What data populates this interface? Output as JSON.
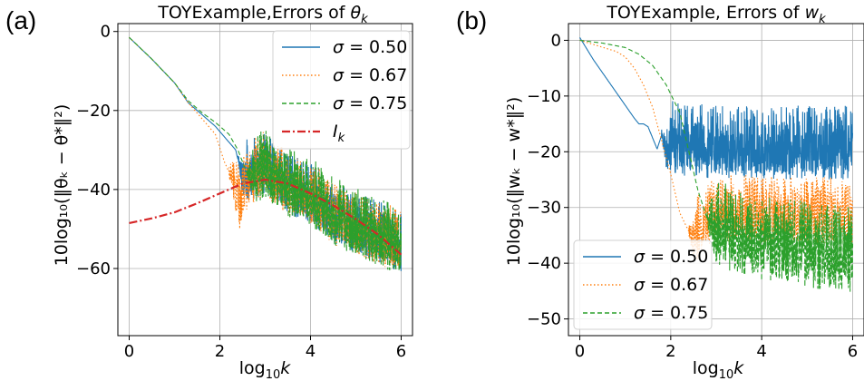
{
  "chart_data": [
    {
      "type": "line",
      "panel_label": "(a)",
      "title": "TOYExample,Errors of θ_k",
      "title_text": "TOYExample,Errors of ",
      "title_math": "θ",
      "title_sub": "k",
      "xlabel_text": "log",
      "xlabel_sub": "10",
      "xlabel_var": "k",
      "ylabel": "10log₁₀(‖θₖ − θ*‖²)",
      "xlim": [
        -0.25,
        6.25
      ],
      "ylim": [
        -77,
        2
      ],
      "xticks": [
        0,
        2,
        4,
        6
      ],
      "yticks": [
        0,
        -20,
        -40,
        -60
      ],
      "xtick_labels": [
        "0",
        "2",
        "4",
        "6"
      ],
      "ytick_labels": [
        "0",
        "−20",
        "−40",
        "−60"
      ],
      "grid": true,
      "legend_position": "top-right",
      "series": [
        {
          "name": "σ = 0.50",
          "color": "#1f77b4",
          "style": "solid",
          "x": [
            0,
            0.5,
            1.0,
            1.3,
            1.6,
            1.9,
            2.2,
            2.35,
            2.45,
            2.5,
            2.6,
            2.8,
            3.0,
            3.5,
            4.0,
            4.5,
            5.0,
            5.5,
            6.0
          ],
          "y": [
            -1.5,
            -7,
            -13,
            -18,
            -21,
            -24,
            -28,
            -30,
            -35,
            -38,
            -36,
            -36,
            -35,
            -40,
            -42,
            -47,
            -50,
            -52,
            -55
          ],
          "noise_from": 2.4,
          "noise_amp": 14
        },
        {
          "name": "σ = 0.67",
          "color": "#ff7f0e",
          "style": "dotted",
          "x": [
            0,
            0.5,
            1.0,
            1.3,
            1.6,
            1.9,
            2.1,
            2.3,
            2.45,
            2.6,
            2.8,
            3.0,
            3.5,
            4.0,
            4.5,
            5.0,
            5.5,
            6.0
          ],
          "y": [
            -1.5,
            -7,
            -13,
            -18,
            -22,
            -26,
            -33,
            -38,
            -44,
            -38,
            -36,
            -35,
            -40,
            -42,
            -47,
            -50,
            -52,
            -55
          ],
          "noise_from": 2.2,
          "noise_amp": 15
        },
        {
          "name": "σ = 0.75",
          "color": "#2ca02c",
          "style": "dashed",
          "x": [
            0,
            0.5,
            1.0,
            1.3,
            1.6,
            1.9,
            2.2,
            2.4,
            2.6,
            2.8,
            3.0,
            3.5,
            4.0,
            4.5,
            5.0,
            5.5,
            6.0
          ],
          "y": [
            -1.5,
            -7,
            -13,
            -17.5,
            -20.5,
            -23,
            -26,
            -30,
            -36,
            -36,
            -35,
            -40,
            -42,
            -47,
            -50,
            -52,
            -55
          ],
          "noise_from": 2.6,
          "noise_amp": 16
        },
        {
          "name": "I_k",
          "color": "#d62728",
          "style": "dashdot",
          "x": [
            0,
            0.5,
            1.0,
            1.5,
            2.0,
            2.5,
            3.0,
            3.5,
            4.0,
            4.5,
            5.0,
            5.5,
            6.0
          ],
          "y": [
            -48.5,
            -47.3,
            -45.8,
            -43.5,
            -41,
            -38.5,
            -37.5,
            -38.5,
            -41,
            -44,
            -47.5,
            -51.5,
            -56.5
          ],
          "noise_from": null,
          "noise_amp": 0
        }
      ],
      "legend": [
        {
          "text": "σ = 0.50",
          "math": "σ",
          "rest": " = 0.50",
          "color": "#1f77b4",
          "style": "solid"
        },
        {
          "text": "σ = 0.67",
          "math": "σ",
          "rest": " = 0.67",
          "color": "#ff7f0e",
          "style": "dotted"
        },
        {
          "text": "σ = 0.75",
          "math": "σ",
          "rest": " = 0.75",
          "color": "#2ca02c",
          "style": "dashed"
        },
        {
          "text": "I_k",
          "math": "I",
          "sub": "k",
          "rest": "",
          "color": "#d62728",
          "style": "dashdot"
        }
      ]
    },
    {
      "type": "line",
      "panel_label": "(b)",
      "title": "TOYExample, Errors of w_k",
      "title_text": "TOYExample, Errors of ",
      "title_math": "w",
      "title_sub": "k",
      "xlabel_text": "log",
      "xlabel_sub": "10",
      "xlabel_var": "k",
      "ylabel": "10log₁₀(‖wₖ − w*‖²)",
      "xlim": [
        -0.25,
        6.25
      ],
      "ylim": [
        -53,
        3
      ],
      "xticks": [
        0,
        2,
        4,
        6
      ],
      "yticks": [
        0,
        -10,
        -20,
        -30,
        -40,
        -50
      ],
      "xtick_labels": [
        "0",
        "2",
        "4",
        "6"
      ],
      "ytick_labels": [
        "0",
        "−10",
        "−20",
        "−30",
        "−40",
        "−50"
      ],
      "grid": true,
      "legend_position": "bottom-left",
      "series": [
        {
          "name": "σ = 0.50",
          "color": "#1f77b4",
          "style": "solid",
          "x": [
            0,
            0.3,
            0.6,
            0.9,
            1.2,
            1.3,
            1.4,
            1.5,
            1.7,
            1.8,
            1.9,
            2.0,
            2.2,
            2.5,
            3.0,
            4.0,
            5.0,
            6.0
          ],
          "y": [
            0.5,
            -3.5,
            -7,
            -10.5,
            -14,
            -15,
            -15,
            -15.5,
            -19.5,
            -17,
            -20,
            -18,
            -19,
            -19,
            -19.5,
            -19.5,
            -19.5,
            -19.5
          ],
          "noise_from": 1.8,
          "noise_amp": 12
        },
        {
          "name": "σ = 0.67",
          "color": "#ff7f0e",
          "style": "dotted",
          "x": [
            0,
            0.4,
            0.8,
            1.0,
            1.2,
            1.4,
            1.6,
            1.8,
            2.0,
            2.2,
            2.5,
            2.8,
            3.0,
            4.0,
            5.0,
            6.0
          ],
          "y": [
            0,
            -1,
            -2,
            -3,
            -5,
            -8,
            -12,
            -18,
            -24,
            -31,
            -36,
            -32,
            -31,
            -31.5,
            -31.5,
            -31.5
          ],
          "noise_from": 2.4,
          "noise_amp": 11
        },
        {
          "name": "σ = 0.75",
          "color": "#2ca02c",
          "style": "dashed",
          "x": [
            0,
            0.5,
            1.0,
            1.3,
            1.6,
            1.9,
            2.2,
            2.4,
            2.6,
            2.8,
            3.0,
            3.5,
            4.0,
            4.5,
            5.0,
            5.5,
            6.0
          ],
          "y": [
            0,
            -0.5,
            -1.3,
            -2.5,
            -4.5,
            -8,
            -13,
            -20,
            -27,
            -32,
            -34,
            -36,
            -37,
            -37.5,
            -38,
            -38.5,
            -39
          ],
          "noise_from": 2.8,
          "noise_amp": 14
        }
      ],
      "legend": [
        {
          "text": "σ = 0.50",
          "math": "σ",
          "rest": " = 0.50",
          "color": "#1f77b4",
          "style": "solid"
        },
        {
          "text": "σ = 0.67",
          "math": "σ",
          "rest": " = 0.67",
          "color": "#ff7f0e",
          "style": "dotted"
        },
        {
          "text": "σ = 0.75",
          "math": "σ",
          "rest": " = 0.75",
          "color": "#2ca02c",
          "style": "dashed"
        }
      ]
    }
  ]
}
